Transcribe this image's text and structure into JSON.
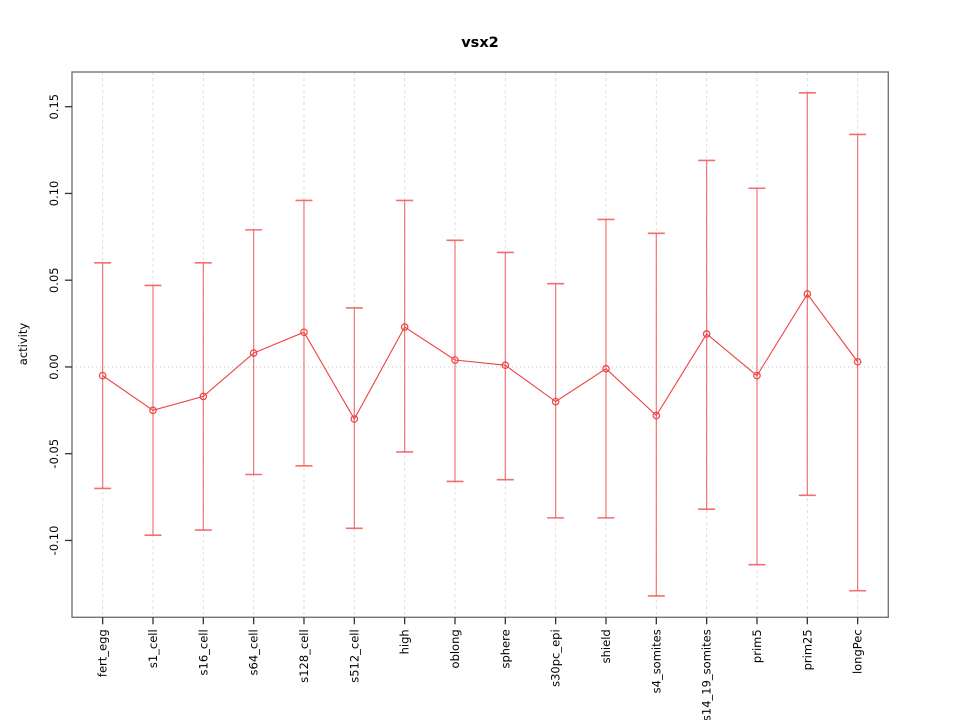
{
  "chart_data": {
    "type": "line",
    "title": "vsx2",
    "xlabel": "",
    "ylabel": "activity",
    "categories": [
      "fert_egg",
      "s1_cell",
      "s16_cell",
      "s64_cell",
      "s128_cell",
      "s512_cell",
      "high",
      "oblong",
      "sphere",
      "s30pc_epi",
      "shield",
      "s4_somites",
      "s14_19_somites",
      "prim5",
      "prim25",
      "longPec"
    ],
    "series": [
      {
        "name": "activity with error bars",
        "means": [
          -0.005,
          -0.025,
          -0.017,
          0.008,
          0.02,
          -0.03,
          0.023,
          0.004,
          0.001,
          -0.02,
          -0.001,
          -0.028,
          0.019,
          -0.005,
          0.042,
          0.003
        ],
        "lower": [
          -0.07,
          -0.097,
          -0.094,
          -0.062,
          -0.057,
          -0.093,
          -0.049,
          -0.066,
          -0.065,
          -0.087,
          -0.087,
          -0.132,
          -0.082,
          -0.114,
          -0.074,
          -0.129
        ],
        "upper": [
          0.06,
          0.047,
          0.06,
          0.079,
          0.096,
          0.034,
          0.096,
          0.073,
          0.066,
          0.048,
          0.085,
          0.077,
          0.119,
          0.103,
          0.158,
          0.134
        ]
      }
    ],
    "y_ticks": [
      {
        "label": "0.15",
        "value": 0.15
      },
      {
        "label": "0.10",
        "value": 0.1
      },
      {
        "label": "0.05",
        "value": 0.05
      },
      {
        "label": "0.00",
        "value": 0.0
      },
      {
        "label": "-0.05",
        "value": -0.05
      },
      {
        "label": "-0.10",
        "value": -0.1
      }
    ],
    "ylim": [
      -0.1443,
      0.17
    ],
    "legend_position": "none",
    "grid": {
      "vertical_gridlines": "dashed, one per category",
      "zero_line": "dotted horizontal at 0.00"
    },
    "colors": {
      "series": "#f04040",
      "error_bar": "#f26060",
      "gridline": "#dedede",
      "zero_line": "#c9c9c9",
      "frame": "#757575",
      "tick": "#333333",
      "text": "#000000",
      "background": "#ffffff"
    }
  }
}
